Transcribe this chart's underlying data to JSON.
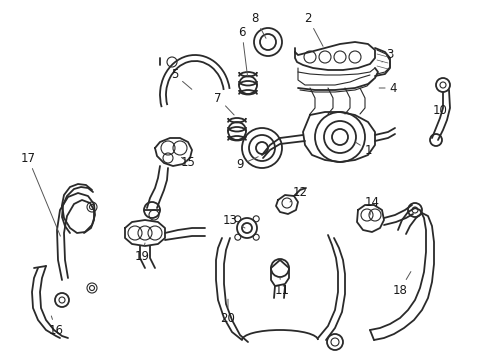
{
  "bg_color": "#ffffff",
  "line_color": "#2a2a2a",
  "label_color": "#1a1a1a",
  "lw_main": 1.3,
  "lw_thin": 0.8,
  "figsize": [
    4.89,
    3.6
  ],
  "dpi": 100,
  "label_fontsize": 8.5
}
